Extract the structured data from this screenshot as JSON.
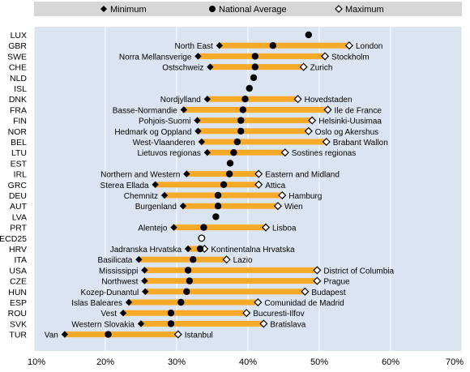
{
  "legend": {
    "items": [
      {
        "label": "Minimum",
        "marker": "diamond-filled"
      },
      {
        "label": "National Average",
        "marker": "circle-filled"
      },
      {
        "label": "Maximum",
        "marker": "diamond-open"
      }
    ],
    "placement": "top"
  },
  "colors": {
    "plot_background": "#dbe5f1",
    "legend_background": "#d7d7d7",
    "range_bar": "#f7a928",
    "gridline": "#ffffff",
    "marker": "#000000",
    "open_marker_fill": "#ffffff"
  },
  "chart_data": {
    "type": "range-dot",
    "orientation": "horizontal",
    "xlim": [
      10,
      70
    ],
    "x_ticks": [
      "10%",
      "20%",
      "30%",
      "40%",
      "50%",
      "60%",
      "70%"
    ],
    "x_tick_values": [
      10,
      20,
      30,
      40,
      50,
      60,
      70
    ],
    "grid": true,
    "series_names": [
      "Minimum",
      "National Average",
      "Maximum"
    ],
    "rows": [
      {
        "country": "LUX",
        "avg": 48.5
      },
      {
        "country": "GBR",
        "min": 36.0,
        "min_label": "North East",
        "avg": 43.5,
        "max": 54.2,
        "max_label": "London"
      },
      {
        "country": "SWE",
        "min": 33.0,
        "min_label": "Norra Mellansverige",
        "avg": 41.0,
        "max": 50.8,
        "max_label": "Stockholm"
      },
      {
        "country": "CHE",
        "min": 34.7,
        "min_label": "Ostschweiz",
        "avg": 41.0,
        "max": 47.8,
        "max_label": "Zurich"
      },
      {
        "country": "NLD",
        "avg": 40.8
      },
      {
        "country": "ISL",
        "avg": 40.2
      },
      {
        "country": "DNK",
        "min": 34.3,
        "min_label": "Nordjylland",
        "avg": 39.6,
        "max": 47.0,
        "max_label": "Hovedstaden"
      },
      {
        "country": "FRA",
        "min": 31.0,
        "min_label": "Basse-Normandie",
        "avg": 39.3,
        "max": 51.2,
        "max_label": "Ile de France"
      },
      {
        "country": "FIN",
        "min": 32.9,
        "min_label": "Pohjois-Suomi",
        "avg": 39.0,
        "max": 49.0,
        "max_label": "Helsinki-Uusimaa"
      },
      {
        "country": "NOR",
        "min": 33.0,
        "min_label": "Hedmark og Oppland",
        "avg": 39.0,
        "max": 48.5,
        "max_label": "Oslo og Akershus"
      },
      {
        "country": "BEL",
        "min": 33.5,
        "min_label": "West-Vlaanderen",
        "avg": 38.5,
        "max": 51.0,
        "max_label": "Brabant Wallon"
      },
      {
        "country": "LTU",
        "min": 34.3,
        "min_label": "Lietuvos regionas",
        "avg": 38.0,
        "max": 45.2,
        "max_label": "Sostines regionas"
      },
      {
        "country": "EST",
        "avg": 37.5
      },
      {
        "country": "IRL",
        "min": 31.4,
        "min_label": "Northern and Western",
        "avg": 37.4,
        "max": 41.5,
        "max_label": "Eastern and Midland"
      },
      {
        "country": "GRC",
        "min": 27.0,
        "min_label": "Sterea Ellada",
        "avg": 36.6,
        "max": 41.5,
        "max_label": "Attica"
      },
      {
        "country": "DEU",
        "min": 28.3,
        "min_label": "Chemnitz",
        "avg": 35.8,
        "max": 44.8,
        "max_label": "Hamburg"
      },
      {
        "country": "AUT",
        "min": 30.9,
        "min_label": "Burgenland",
        "avg": 35.8,
        "max": 44.2,
        "max_label": "Wien"
      },
      {
        "country": "LVA",
        "avg": 35.5
      },
      {
        "country": "PRT",
        "min": 29.6,
        "min_label": "Alentejo",
        "avg": 33.8,
        "max": 42.5,
        "max_label": "Lisboa"
      },
      {
        "country": "OECD25",
        "avg": 33.5,
        "avg_open": true
      },
      {
        "country": "HRV",
        "min": 31.6,
        "min_label": "Jadranska Hrvatska",
        "avg": 33.3,
        "max": 33.9,
        "max_label": "Kontinentalna Hrvatska"
      },
      {
        "country": "ITA",
        "min": 24.7,
        "min_label": "Basilicata",
        "avg": 32.3,
        "max": 37.0,
        "max_label": "Lazio"
      },
      {
        "country": "USA",
        "min": 25.5,
        "min_label": "Mississippi",
        "avg": 31.6,
        "max": 49.7,
        "max_label": "District of Columbia"
      },
      {
        "country": "CZE",
        "min": 25.5,
        "min_label": "Northwest",
        "avg": 31.8,
        "max": 49.7,
        "max_label": "Prague"
      },
      {
        "country": "HUN",
        "min": 25.6,
        "min_label": "Kozep-Dunantul",
        "avg": 31.4,
        "max": 48.0,
        "max_label": "Budapest"
      },
      {
        "country": "ESP",
        "min": 23.3,
        "min_label": "Islas Baleares",
        "avg": 30.6,
        "max": 41.4,
        "max_label": "Comunidad de Madrid"
      },
      {
        "country": "ROU",
        "min": 22.5,
        "min_label": "Vest",
        "avg": 29.2,
        "max": 39.8,
        "max_label": "Bucuresti-Ilfov"
      },
      {
        "country": "SVK",
        "min": 25.0,
        "min_label": "Western Slovakia",
        "avg": 29.2,
        "max": 42.2,
        "max_label": "Bratislava"
      },
      {
        "country": "TUR",
        "min": 14.3,
        "min_label": "Van",
        "avg": 20.4,
        "max": 30.2,
        "max_label": "Istanbul"
      }
    ]
  }
}
